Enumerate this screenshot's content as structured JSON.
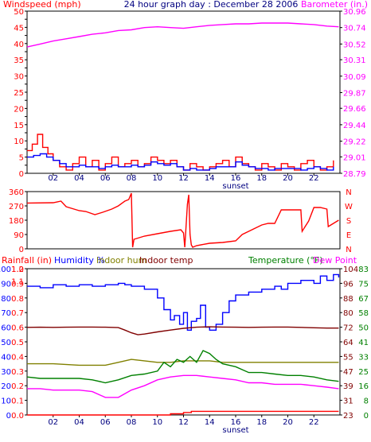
{
  "chart_data": [
    {
      "type": "line",
      "title": "24 hour graph day : December 28 2006",
      "ylabel_left": "Windspeed (mph)",
      "ylabel_right": "Barometer (in.)",
      "colors": {
        "wind": "#ff0000",
        "wind_avg": "#0000ff",
        "barometer": "#ff00ff"
      },
      "x_ticks": [
        "02",
        "04",
        "06",
        "08",
        "10",
        "12",
        "14",
        "16",
        "18",
        "20",
        "22"
      ],
      "x_annotation": "sunset",
      "ylim_left": [
        0,
        50
      ],
      "yticks_left": [
        "0",
        "2.5",
        "5",
        "7.5",
        "10",
        "12.5",
        "15",
        "17.5",
        "20",
        "22.5",
        "25",
        "27.5",
        "30",
        "32.5",
        "35",
        "37.5",
        "40",
        "42.5",
        "45",
        "47.5",
        "50"
      ],
      "yticks_left_shown": [
        "0",
        "5",
        "10",
        "15",
        "20",
        "25",
        "30",
        "35",
        "40",
        "45",
        "50"
      ],
      "ylim_right": [
        28.79,
        30.96
      ],
      "yticks_right": [
        "28.79",
        "29.01",
        "29.22",
        "29.44",
        "29.66",
        "29.87",
        "30.09",
        "30.31",
        "30.52",
        "30.74",
        "30.96"
      ],
      "series": [
        {
          "key": "wind",
          "hours": [
            0,
            0.4,
            0.8,
            1.2,
            1.6,
            2,
            2.5,
            3,
            3.5,
            4,
            4.5,
            5,
            5.5,
            6,
            6.5,
            7,
            7.5,
            8,
            8.5,
            9,
            9.5,
            10,
            10.5,
            11,
            11.5,
            12,
            12.5,
            13,
            13.5,
            14,
            14.5,
            15,
            15.5,
            16,
            16.5,
            17,
            17.5,
            18,
            18.5,
            19,
            19.5,
            20,
            20.5,
            21,
            21.5,
            22,
            22.5,
            23,
            23.5
          ],
          "values": [
            7,
            9,
            12,
            8,
            6,
            4,
            2,
            1,
            3,
            5,
            2,
            4,
            1,
            3,
            5,
            2,
            3,
            4,
            2,
            3,
            5,
            4,
            3,
            4,
            2,
            1,
            3,
            2,
            1,
            2,
            3,
            4,
            2,
            5,
            3,
            2,
            1,
            3,
            2,
            1,
            3,
            2,
            1,
            3,
            4,
            2,
            1,
            2,
            4
          ]
        },
        {
          "key": "wind_avg",
          "hours": [
            0,
            0.5,
            1,
            1.5,
            2,
            2.5,
            3,
            3.5,
            4,
            4.5,
            5,
            5.5,
            6,
            6.5,
            7,
            7.5,
            8,
            8.5,
            9,
            9.5,
            10,
            10.5,
            11,
            11.5,
            12,
            12.5,
            13,
            13.5,
            14,
            14.5,
            15,
            15.5,
            16,
            16.5,
            17,
            17.5,
            18,
            18.5,
            19,
            19.5,
            20,
            20.5,
            21,
            21.5,
            22,
            22.5,
            23,
            23.5
          ],
          "values": [
            5,
            5.5,
            6,
            5,
            4,
            3,
            2,
            2,
            2.5,
            2,
            2,
            1.5,
            2,
            2.5,
            2,
            2,
            2.5,
            2,
            2.5,
            3.5,
            3,
            2.5,
            3,
            2,
            1,
            1.5,
            1,
            1,
            1.5,
            2,
            2,
            2,
            3.5,
            2.5,
            2,
            1.5,
            1.5,
            1,
            1.5,
            1.5,
            1.5,
            1.5,
            1,
            1.5,
            2,
            1.5,
            1,
            2
          ]
        },
        {
          "key": "barometer",
          "hours": [
            0,
            1,
            2,
            3,
            4,
            5,
            6,
            7,
            8,
            9,
            10,
            11,
            12,
            13,
            14,
            15,
            16,
            17,
            18,
            19,
            20,
            21,
            22,
            23,
            23.9
          ],
          "values": [
            30.48,
            30.52,
            30.56,
            30.59,
            30.62,
            30.65,
            30.67,
            30.7,
            30.71,
            30.74,
            30.75,
            30.74,
            30.73,
            30.75,
            30.77,
            30.78,
            30.79,
            30.79,
            30.8,
            30.8,
            30.8,
            30.79,
            30.78,
            30.76,
            30.75
          ]
        }
      ]
    },
    {
      "type": "line",
      "ylabel_left": "",
      "ylim": [
        0,
        360
      ],
      "yticks_left": [
        "0",
        "90",
        "180",
        "270",
        "360"
      ],
      "compass_labels": [
        "N",
        "W",
        "S",
        "E",
        "N"
      ],
      "colors": {
        "direction": "#ff0000",
        "compass": "#ff0000"
      },
      "series": [
        {
          "key": "direction",
          "hours": [
            0,
            2,
            2.6,
            3,
            4,
            4.5,
            5.2,
            5.8,
            6.5,
            7,
            7.5,
            7.8,
            8,
            8.1,
            8.2,
            9,
            10,
            11,
            11.8,
            12,
            12.1,
            12.3,
            12.4,
            12.5,
            12.6,
            12.7,
            13,
            14,
            15,
            16,
            16.5,
            17,
            17.5,
            18,
            18.5,
            19,
            19.5,
            21,
            21.1,
            21.6,
            22,
            22.5,
            23,
            23.1,
            23.9
          ],
          "values": [
            288,
            290,
            300,
            265,
            240,
            235,
            215,
            230,
            250,
            270,
            300,
            310,
            350,
            10,
            60,
            80,
            95,
            110,
            120,
            100,
            10,
            280,
            340,
            90,
            25,
            10,
            20,
            35,
            40,
            50,
            90,
            110,
            130,
            150,
            160,
            160,
            245,
            245,
            110,
            175,
            260,
            260,
            250,
            140,
            180
          ]
        }
      ]
    },
    {
      "type": "line",
      "ylabel_left": "Rainfall (in)",
      "ylabel_parts": [
        "Humidity %",
        "Indoor hum",
        "Indoor temp"
      ],
      "ylabel_right": "Temperature (°F)",
      "ylabel_right2": "Dew Point",
      "x_ticks": [
        "02",
        "04",
        "06",
        "08",
        "10",
        "12",
        "14",
        "16",
        "18",
        "20",
        "22"
      ],
      "x_annotation": "sunset",
      "yticks_rain": [
        "0.0",
        "0.1",
        "0.2",
        "0.3",
        "0.4",
        "0.5",
        "0.6",
        "0.7",
        "0.8",
        "0.9",
        "1.0",
        "1.1",
        "1.2"
      ],
      "yticks_humidity": [
        "0",
        "10",
        "20",
        "30",
        "40",
        "50",
        "60",
        "70",
        "80",
        "90",
        "100"
      ],
      "yticks_indoor": [
        "0",
        "8",
        "16",
        "25",
        "33",
        "41",
        "50",
        "58",
        "67",
        "75",
        "83"
      ],
      "yticks_temp": [
        "23",
        "31",
        "39",
        "47",
        "55",
        "64",
        "72",
        "80",
        "88",
        "96",
        "104"
      ],
      "ylim_humidity": [
        0,
        100
      ],
      "colors": {
        "rain": "#ff0000",
        "humidity": "#0000ff",
        "indoor_hum": "#808000",
        "indoor_temp": "#800000",
        "temperature": "#008000",
        "dew_point": "#ff00ff",
        "rain_axis": "#ff0000",
        "hum_axis": "#0000ff",
        "indoor_axis": "#808000",
        "temp_axis": "#800000",
        "dew_axis": "#008000"
      },
      "series": [
        {
          "key": "humidity",
          "hours": [
            0,
            1,
            2,
            3,
            4,
            5,
            6,
            7,
            7.5,
            8,
            9,
            10,
            10.5,
            11,
            11.3,
            11.7,
            12,
            12.3,
            12.6,
            13,
            13.3,
            13.7,
            14,
            14.5,
            15,
            15.5,
            16,
            17,
            18,
            19,
            19.5,
            20,
            21,
            22,
            22.5,
            23,
            23.5,
            23.9
          ],
          "values": [
            88,
            87,
            89,
            88,
            89,
            88,
            89,
            90,
            89,
            88,
            86,
            80,
            72,
            65,
            68,
            62,
            70,
            58,
            64,
            66,
            75,
            60,
            58,
            62,
            70,
            78,
            82,
            84,
            86,
            88,
            86,
            90,
            92,
            90,
            95,
            92,
            96,
            94
          ]
        },
        {
          "key": "indoor_hum",
          "hours": [
            0,
            2,
            4,
            6,
            7,
            8,
            9,
            10,
            11,
            12,
            13,
            14,
            15,
            16,
            17,
            18,
            19,
            20,
            21,
            22,
            23,
            23.9
          ],
          "values": [
            35,
            35,
            34,
            34,
            36,
            38,
            37,
            36,
            36,
            37,
            37,
            37,
            36,
            36,
            36,
            36,
            36,
            36,
            36,
            36,
            36,
            36
          ]
        },
        {
          "key": "indoor_temp",
          "hours": [
            0,
            1,
            2,
            3,
            4,
            5,
            6,
            7,
            7.5,
            8,
            8.5,
            9,
            10,
            11,
            12,
            13,
            14,
            15,
            16,
            17,
            18,
            19,
            20,
            21,
            22,
            23,
            23.9
          ],
          "values": [
            71.5,
            71.6,
            71.5,
            71.6,
            71.7,
            71.7,
            71.6,
            71.4,
            70.0,
            68.5,
            67.4,
            67.8,
            69.0,
            70.0,
            71.0,
            71.6,
            71.8,
            71.7,
            71.6,
            71.5,
            71.6,
            71.7,
            71.7,
            71.5,
            71.3,
            71.1,
            71.1
          ]
        },
        {
          "key": "temperature",
          "hours": [
            0,
            1,
            2,
            3,
            4,
            5,
            6,
            7,
            8,
            9,
            10,
            10.5,
            11,
            11.5,
            12,
            12.5,
            13,
            13.5,
            14,
            14.5,
            15,
            16,
            17,
            18,
            19,
            20,
            21,
            22,
            23,
            23.9
          ],
          "values": [
            26,
            25,
            25,
            25,
            25,
            24,
            22,
            24,
            27,
            28,
            30,
            36,
            33,
            38,
            36,
            40,
            36,
            44,
            42,
            38,
            35,
            33,
            29,
            29,
            28,
            27,
            27,
            26,
            24,
            23
          ]
        },
        {
          "key": "dew_point",
          "hours": [
            0,
            1,
            2,
            3,
            4,
            5,
            6,
            7,
            8,
            9,
            10,
            11,
            12,
            13,
            14,
            15,
            16,
            17,
            18,
            19,
            20,
            21,
            22,
            23,
            23.9
          ],
          "values": [
            18,
            18,
            17,
            17,
            17,
            16,
            12,
            12,
            17,
            20,
            24,
            26,
            27,
            27,
            26,
            25,
            24,
            22,
            22,
            21,
            21,
            21,
            20,
            19,
            18
          ]
        },
        {
          "key": "rain",
          "hours": [
            0,
            10,
            11,
            12,
            12.6,
            13,
            23.9
          ],
          "values": [
            0.0,
            0.0,
            0.01,
            0.02,
            0.03,
            0.03,
            0.03
          ]
        }
      ]
    }
  ]
}
